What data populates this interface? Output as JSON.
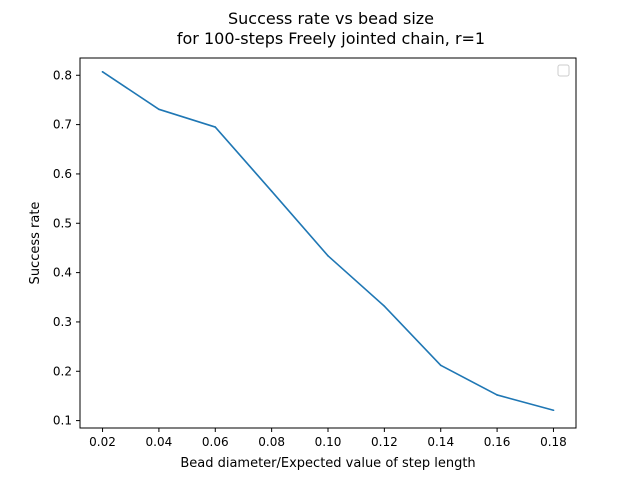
{
  "chart_data": {
    "type": "line",
    "title": "Success rate vs bead size",
    "subtitle": "for 100-steps Freely jointed chain, r=1",
    "xlabel": "Bead diameter/Expected value of step length",
    "ylabel": "Success rate",
    "xlim": [
      0.012,
      0.188
    ],
    "ylim": [
      0.085,
      0.835
    ],
    "xticks": [
      0.02,
      0.04,
      0.06,
      0.08,
      0.1,
      0.12,
      0.14,
      0.16,
      0.18
    ],
    "xtick_labels": [
      "0.02",
      "0.04",
      "0.06",
      "0.08",
      "0.10",
      "0.12",
      "0.14",
      "0.16",
      "0.18"
    ],
    "yticks": [
      0.1,
      0.2,
      0.3,
      0.4,
      0.5,
      0.6,
      0.7,
      0.8
    ],
    "ytick_labels": [
      "0.1",
      "0.2",
      "0.3",
      "0.4",
      "0.5",
      "0.6",
      "0.7",
      "0.8"
    ],
    "grid": false,
    "legend_position": "top-right",
    "series": [
      {
        "color": "#1f77b4",
        "x": [
          0.02,
          0.04,
          0.06,
          0.08,
          0.1,
          0.12,
          0.14,
          0.16,
          0.18
        ],
        "y": [
          0.807,
          0.731,
          0.695,
          0.565,
          0.434,
          0.332,
          0.212,
          0.152,
          0.121
        ]
      }
    ]
  }
}
